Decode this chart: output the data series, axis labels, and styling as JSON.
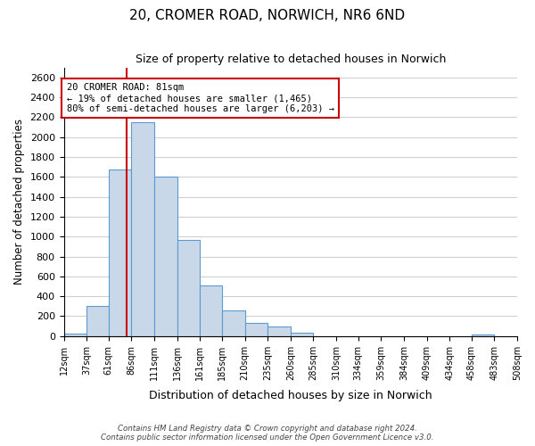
{
  "title": "20, CROMER ROAD, NORWICH, NR6 6ND",
  "subtitle": "Size of property relative to detached houses in Norwich",
  "xlabel": "Distribution of detached houses by size in Norwich",
  "ylabel": "Number of detached properties",
  "bar_edges": [
    12,
    37,
    61,
    86,
    111,
    136,
    161,
    185,
    210,
    235,
    260,
    285,
    310,
    334,
    359,
    384,
    409,
    434,
    458,
    483,
    508
  ],
  "bar_heights": [
    25,
    300,
    1675,
    2150,
    1600,
    970,
    510,
    255,
    130,
    100,
    30,
    0,
    0,
    0,
    0,
    0,
    0,
    0,
    20,
    0
  ],
  "bar_color": "#c8d8e8",
  "bar_edgecolor": "#5b9bd5",
  "property_size": 81,
  "vline_color": "#cc0000",
  "annotation_text": "20 CROMER ROAD: 81sqm\n← 19% of detached houses are smaller (1,465)\n80% of semi-detached houses are larger (6,203) →",
  "annotation_box_edgecolor": "#cc0000",
  "ylim": [
    0,
    2700
  ],
  "yticks": [
    0,
    200,
    400,
    600,
    800,
    1000,
    1200,
    1400,
    1600,
    1800,
    2000,
    2200,
    2400,
    2600
  ],
  "tick_labels": [
    "12sqm",
    "37sqm",
    "61sqm",
    "86sqm",
    "111sqm",
    "136sqm",
    "161sqm",
    "185sqm",
    "210sqm",
    "235sqm",
    "260sqm",
    "285sqm",
    "310sqm",
    "334sqm",
    "359sqm",
    "384sqm",
    "409sqm",
    "434sqm",
    "458sqm",
    "483sqm",
    "508sqm"
  ],
  "footer_line1": "Contains HM Land Registry data © Crown copyright and database right 2024.",
  "footer_line2": "Contains public sector information licensed under the Open Government Licence v3.0.",
  "background_color": "#ffffff",
  "grid_color": "#d0d0d0"
}
